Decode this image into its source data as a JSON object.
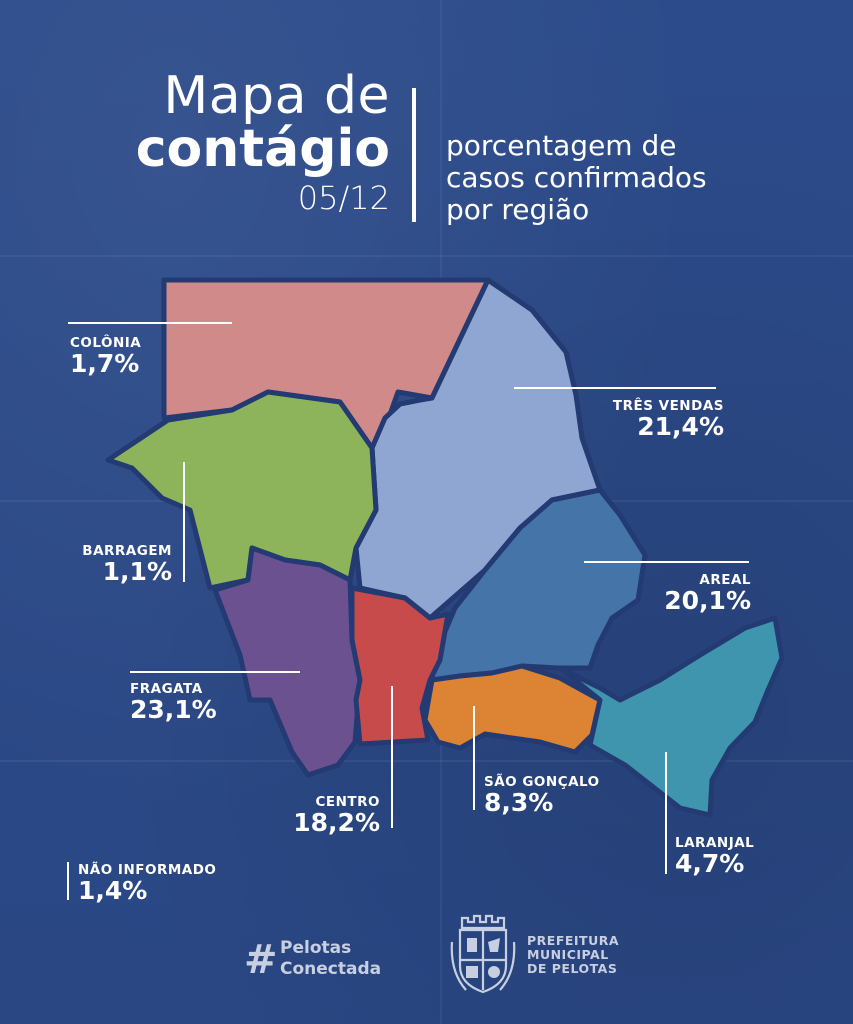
{
  "header": {
    "title_line1": "Mapa de",
    "title_line2": "contágio",
    "date": "05/12",
    "subtitle_lines": [
      "porcentagem de",
      "casos confirmados",
      "por região"
    ]
  },
  "regions": [
    {
      "id": "colonia",
      "name": "COLÔNIA",
      "value": "1,7%",
      "color": "#d08a8a"
    },
    {
      "id": "tres-vendas",
      "name": "TRÊS VENDAS",
      "value": "21,4%",
      "color": "#8fa6d2"
    },
    {
      "id": "barragem",
      "name": "BARRAGEM",
      "value": "1,1%",
      "color": "#8db45a"
    },
    {
      "id": "areal",
      "name": "AREAL",
      "value": "20,1%",
      "color": "#4474a8"
    },
    {
      "id": "fragata",
      "name": "FRAGATA",
      "value": "23,1%",
      "color": "#6c5191"
    },
    {
      "id": "centro",
      "name": "CENTRO",
      "value": "18,2%",
      "color": "#c84b4b"
    },
    {
      "id": "sao-goncalo",
      "name": "SÃO GONÇALO",
      "value": "8,3%",
      "color": "#dd8334"
    },
    {
      "id": "laranjal",
      "name": "LARANJAL",
      "value": "4,7%",
      "color": "#3f95ad"
    },
    {
      "id": "nao-informado",
      "name": "NÃO INFORMADO",
      "value": "1,4%",
      "color": null
    }
  ],
  "footer": {
    "hashtag_symbol": "#",
    "hashtag_line1": "Pelotas",
    "hashtag_line2": "Conectada",
    "crest_icon": "city-crest-icon",
    "prefeitura_lines": [
      "PREFEITURA",
      "MUNICIPAL",
      "DE PELOTAS"
    ]
  },
  "colors": {
    "background": "#2b4a88",
    "border": "#233a72",
    "text": "#ffffff",
    "footer_text": "#c7cfe0"
  }
}
